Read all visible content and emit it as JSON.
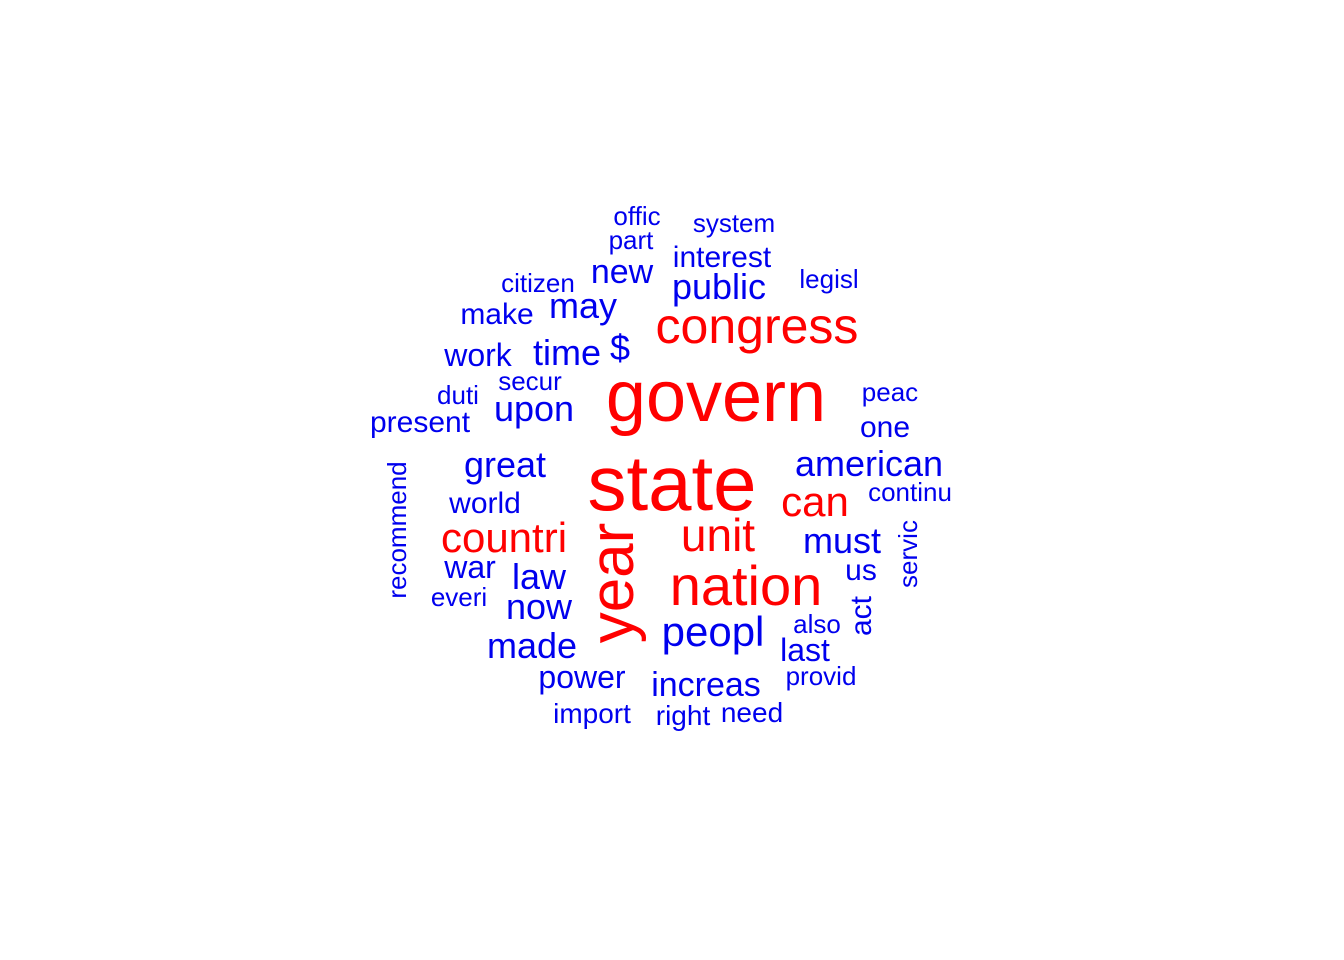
{
  "colors": {
    "primary": "#ff0000",
    "secondary": "#0000ee",
    "background": "#ffffff"
  },
  "words": [
    {
      "text": "offic",
      "weight": 1,
      "tier": "secondary"
    },
    {
      "text": "system",
      "weight": 1,
      "tier": "secondary"
    },
    {
      "text": "part",
      "weight": 1,
      "tier": "secondary"
    },
    {
      "text": "interest",
      "weight": 2,
      "tier": "secondary"
    },
    {
      "text": "new",
      "weight": 2,
      "tier": "secondary"
    },
    {
      "text": "citizen",
      "weight": 1,
      "tier": "secondary"
    },
    {
      "text": "legisl",
      "weight": 1,
      "tier": "secondary"
    },
    {
      "text": "public",
      "weight": 2,
      "tier": "secondary"
    },
    {
      "text": "make",
      "weight": 2,
      "tier": "secondary"
    },
    {
      "text": "may",
      "weight": 2,
      "tier": "secondary"
    },
    {
      "text": "congress",
      "weight": 4,
      "tier": "primary"
    },
    {
      "text": "work",
      "weight": 2,
      "tier": "secondary"
    },
    {
      "text": "time",
      "weight": 2,
      "tier": "secondary"
    },
    {
      "text": "$",
      "weight": 2,
      "tier": "secondary"
    },
    {
      "text": "secur",
      "weight": 1,
      "tier": "secondary"
    },
    {
      "text": "duti",
      "weight": 1,
      "tier": "secondary"
    },
    {
      "text": "govern",
      "weight": 6,
      "tier": "primary"
    },
    {
      "text": "peac",
      "weight": 1,
      "tier": "secondary"
    },
    {
      "text": "present",
      "weight": 2,
      "tier": "secondary"
    },
    {
      "text": "upon",
      "weight": 3,
      "tier": "secondary"
    },
    {
      "text": "one",
      "weight": 2,
      "tier": "secondary"
    },
    {
      "text": "great",
      "weight": 3,
      "tier": "secondary"
    },
    {
      "text": "state",
      "weight": 6,
      "tier": "primary"
    },
    {
      "text": "american",
      "weight": 3,
      "tier": "secondary"
    },
    {
      "text": "recommend",
      "weight": 1,
      "tier": "secondary"
    },
    {
      "text": "world",
      "weight": 2,
      "tier": "secondary"
    },
    {
      "text": "can",
      "weight": 4,
      "tier": "primary"
    },
    {
      "text": "continu",
      "weight": 1,
      "tier": "secondary"
    },
    {
      "text": "countri",
      "weight": 4,
      "tier": "primary"
    },
    {
      "text": "year",
      "weight": 5,
      "tier": "primary"
    },
    {
      "text": "unit",
      "weight": 4,
      "tier": "primary"
    },
    {
      "text": "must",
      "weight": 3,
      "tier": "secondary"
    },
    {
      "text": "servic",
      "weight": 1,
      "tier": "secondary"
    },
    {
      "text": "war",
      "weight": 2,
      "tier": "secondary"
    },
    {
      "text": "law",
      "weight": 3,
      "tier": "secondary"
    },
    {
      "text": "nation",
      "weight": 5,
      "tier": "primary"
    },
    {
      "text": "us",
      "weight": 2,
      "tier": "secondary"
    },
    {
      "text": "everi",
      "weight": 1,
      "tier": "secondary"
    },
    {
      "text": "now",
      "weight": 3,
      "tier": "secondary"
    },
    {
      "text": "act",
      "weight": 2,
      "tier": "secondary"
    },
    {
      "text": "also",
      "weight": 1,
      "tier": "secondary"
    },
    {
      "text": "peopl",
      "weight": 3,
      "tier": "secondary"
    },
    {
      "text": "made",
      "weight": 2,
      "tier": "secondary"
    },
    {
      "text": "last",
      "weight": 2,
      "tier": "secondary"
    },
    {
      "text": "power",
      "weight": 2,
      "tier": "secondary"
    },
    {
      "text": "increas",
      "weight": 2,
      "tier": "secondary"
    },
    {
      "text": "provid",
      "weight": 1,
      "tier": "secondary"
    },
    {
      "text": "import",
      "weight": 2,
      "tier": "secondary"
    },
    {
      "text": "right",
      "weight": 1,
      "tier": "secondary"
    },
    {
      "text": "need",
      "weight": 1,
      "tier": "secondary"
    }
  ]
}
